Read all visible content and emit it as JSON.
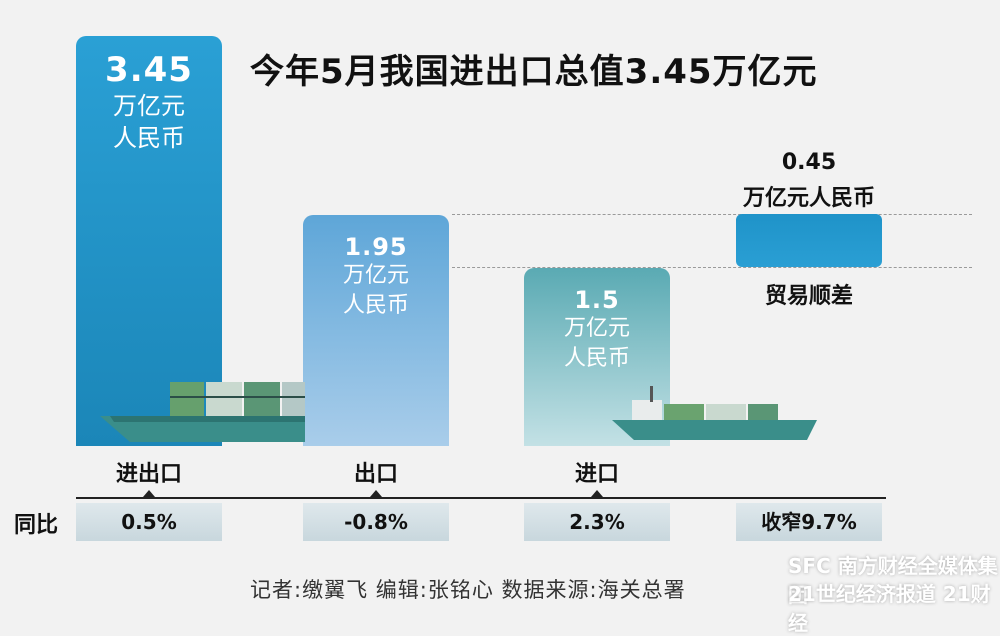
{
  "title": "今年5月我国进出口总值3.45万亿元",
  "chart_data": {
    "type": "bar",
    "categories": [
      "进出口",
      "出口",
      "进口"
    ],
    "values": [
      3.45,
      1.95,
      1.5
    ],
    "value_labels": [
      "3.45",
      "1.95",
      "1.5"
    ],
    "unit_lines": [
      "万亿元",
      "人民币"
    ],
    "trade_surplus": {
      "value": 0.45,
      "value_label": "0.45",
      "unit": "万亿元人民币",
      "label": "贸易顺差"
    },
    "yoy_label": "同比",
    "yoy_values": [
      "0.5%",
      "-0.8%",
      "2.3%",
      "收窄9.7%"
    ],
    "colors": {
      "total": "#1f93c9",
      "export": "#7cb8e1",
      "import": "#7bbdc4",
      "surplus": "#1f93c9"
    }
  },
  "footer": "记者:缴翼飞   编辑:张铭心   数据来源:海关总署",
  "watermark": {
    "line1": "SFC 南方财经全媒体集团",
    "line2": "21世纪经济报道 21财经"
  }
}
